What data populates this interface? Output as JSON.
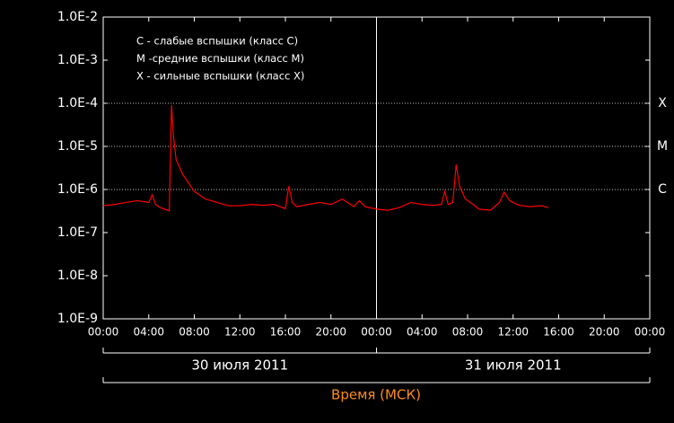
{
  "chart_data": {
    "type": "line",
    "yscale": "log",
    "ylim": [
      1e-09,
      0.01
    ],
    "yticks": [
      {
        "value": 1e-09,
        "label": "1.0E-9"
      },
      {
        "value": 1e-08,
        "label": "1.0E-8"
      },
      {
        "value": 1e-07,
        "label": "1.0E-7"
      },
      {
        "value": 1e-06,
        "label": "1.0E-6"
      },
      {
        "value": 1e-05,
        "label": "1.0E-5"
      },
      {
        "value": 0.0001,
        "label": "1.0E-4"
      },
      {
        "value": 0.001,
        "label": "1.0E-3"
      },
      {
        "value": 0.01,
        "label": "1.0E-2"
      }
    ],
    "xlim": [
      0,
      48
    ],
    "xticks": [
      {
        "value": 0,
        "label": "00:00"
      },
      {
        "value": 4,
        "label": "04:00"
      },
      {
        "value": 8,
        "label": "08:00"
      },
      {
        "value": 12,
        "label": "12:00"
      },
      {
        "value": 16,
        "label": "16:00"
      },
      {
        "value": 20,
        "label": "20:00"
      },
      {
        "value": 24,
        "label": "00:00"
      },
      {
        "value": 28,
        "label": "04:00"
      },
      {
        "value": 32,
        "label": "08:00"
      },
      {
        "value": 36,
        "label": "12:00"
      },
      {
        "value": 40,
        "label": "16:00"
      },
      {
        "value": 44,
        "label": "20:00"
      },
      {
        "value": 48,
        "label": "00:00"
      }
    ],
    "day_labels": [
      "30 июля 2011",
      "31 июля 2011"
    ],
    "xlabel": "Время (МСК)",
    "class_levels": [
      {
        "value": 0.0001,
        "label": "X"
      },
      {
        "value": 1e-05,
        "label": "M"
      },
      {
        "value": 1e-06,
        "label": "C"
      }
    ],
    "legend_lines": [
      "C - слабые вспышки (класс C)",
      "M -средние вспышки (класс M)",
      "X - сильные вспышки (класс X)"
    ],
    "series": [
      {
        "color": "#ff0000",
        "x": [
          0,
          1,
          2,
          3,
          4,
          4.3,
          4.6,
          5,
          5.8,
          6.0,
          6.15,
          6.4,
          7,
          8,
          9,
          10,
          11,
          12,
          13,
          14,
          15,
          16,
          16.3,
          16.6,
          17,
          18,
          19,
          20,
          21,
          22,
          22.5,
          23,
          24,
          25,
          26,
          27,
          28,
          29,
          29.7,
          30.0,
          30.3,
          30.7,
          31.0,
          31.3,
          31.8,
          32.5,
          33,
          34,
          34.8,
          35.2,
          35.7,
          36.5,
          37.5,
          38.5,
          39.1
        ],
        "values": [
          4.2e-07,
          4.5e-07,
          5e-07,
          5.5e-07,
          5e-07,
          7.5e-07,
          4.5e-07,
          3.8e-07,
          3.2e-07,
          9e-05,
          2e-05,
          5e-06,
          2.2e-06,
          9e-07,
          6e-07,
          5e-07,
          4.2e-07,
          4.2e-07,
          4.5e-07,
          4.3e-07,
          4.5e-07,
          3.6e-07,
          1.2e-06,
          5e-07,
          4e-07,
          4.5e-07,
          5e-07,
          4.5e-07,
          6e-07,
          4e-07,
          5.5e-07,
          4e-07,
          3.5e-07,
          3.3e-07,
          3.8e-07,
          5e-07,
          4.5e-07,
          4.3e-07,
          4.5e-07,
          9e-07,
          4.5e-07,
          5e-07,
          3.8e-06,
          1.2e-06,
          6e-07,
          4.5e-07,
          3.5e-07,
          3.3e-07,
          5e-07,
          8.6e-07,
          5.5e-07,
          4.3e-07,
          4e-07,
          4.2e-07,
          3.8e-07
        ]
      }
    ]
  }
}
